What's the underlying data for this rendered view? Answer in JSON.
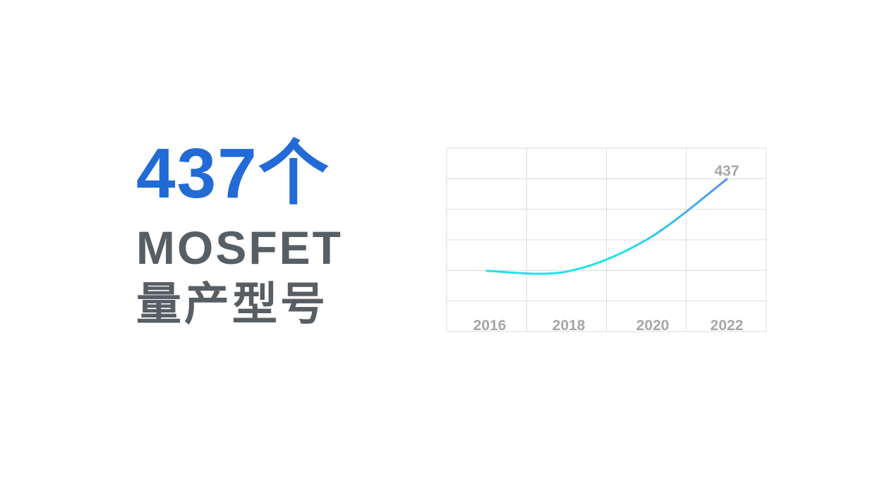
{
  "headline": {
    "value": "437个",
    "line1": "MOSFET",
    "line2": "量产型号"
  },
  "colors": {
    "headline": "#226bd6",
    "text": "#575e64",
    "line_start": "#1ee3ec",
    "line_end": "#5b8ff0",
    "grid": "#dcdcdc",
    "labels": "#a6a6a6"
  },
  "chart_data": {
    "type": "line",
    "x": [
      "2016",
      "2018",
      "2020",
      "2022"
    ],
    "tick_labels": [
      "2016",
      "2018",
      "2020",
      "2022"
    ],
    "series": [
      {
        "values": [
          174,
          172,
          263,
          437
        ]
      }
    ],
    "data_labels": [
      {
        "x": "2022",
        "text": "437"
      }
    ],
    "ylim": [
      0,
      526
    ],
    "grid": true,
    "smooth": true
  }
}
